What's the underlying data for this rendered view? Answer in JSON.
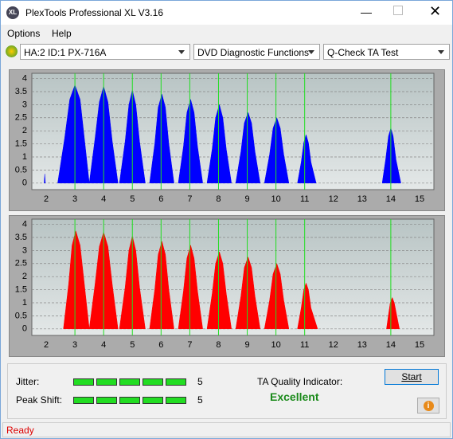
{
  "window": {
    "title": "PlexTools Professional XL V3.16"
  },
  "menu": [
    "Options",
    "Help"
  ],
  "toolbar": {
    "drive": "HA:2 ID:1  PX-716A",
    "function": "DVD Diagnostic Functions",
    "test": "Q-Check TA Test"
  },
  "chart_data": [
    {
      "type": "area",
      "x": [
        1.93,
        1.95,
        1.97,
        null,
        2.4,
        2.64,
        2.82,
        3.0,
        3.18,
        3.33,
        3.5,
        null,
        3.5,
        3.7,
        3.85,
        4.0,
        4.15,
        4.3,
        4.5,
        null,
        4.55,
        4.75,
        4.88,
        5.0,
        5.12,
        5.25,
        5.45,
        null,
        5.6,
        5.78,
        5.9,
        6.03,
        6.15,
        6.27,
        6.45,
        null,
        6.6,
        6.78,
        6.9,
        7.03,
        7.15,
        7.27,
        7.45,
        null,
        7.6,
        7.78,
        7.9,
        8.03,
        8.15,
        8.27,
        8.45,
        null,
        8.6,
        8.78,
        8.9,
        9.03,
        9.15,
        9.27,
        9.45,
        null,
        9.6,
        9.78,
        9.9,
        10.03,
        10.15,
        10.27,
        10.45,
        null,
        10.75,
        10.88,
        10.97,
        11.05,
        11.13,
        11.22,
        11.4,
        null,
        13.7,
        13.82,
        13.92,
        14.0,
        14.08,
        14.18,
        14.35
      ],
      "series": [
        {
          "color": "#0000ff",
          "values": [
            0,
            0.35,
            0,
            null,
            0,
            1.7,
            3.2,
            3.75,
            3.2,
            1.7,
            0,
            null,
            0,
            1.7,
            3.1,
            3.7,
            3.1,
            1.6,
            0,
            null,
            0,
            1.6,
            3.0,
            3.55,
            3.0,
            1.6,
            0,
            null,
            0,
            1.5,
            2.9,
            3.4,
            2.9,
            1.5,
            0,
            null,
            0,
            1.4,
            2.7,
            3.2,
            2.7,
            1.4,
            0,
            null,
            0,
            1.3,
            2.5,
            3.0,
            2.5,
            1.3,
            0,
            null,
            0,
            1.2,
            2.3,
            2.7,
            2.3,
            1.2,
            0,
            null,
            0,
            1.1,
            2.1,
            2.5,
            2.1,
            1.1,
            0,
            null,
            0,
            0.8,
            1.55,
            1.85,
            1.55,
            0.8,
            0,
            null,
            0,
            0.9,
            1.8,
            2.1,
            1.8,
            0.9,
            0
          ]
        }
      ],
      "xlim": [
        1.5,
        15.5
      ],
      "ylim": [
        -0.25,
        4.2
      ],
      "xticks": [
        2,
        3,
        4,
        5,
        6,
        7,
        8,
        9,
        10,
        11,
        12,
        13,
        14,
        15
      ],
      "yticks": [
        0,
        0.5,
        1,
        1.5,
        2,
        2.5,
        3,
        3.5,
        4
      ],
      "grid": true,
      "marker_lines": [
        3,
        4,
        5,
        6,
        7,
        8,
        9,
        10,
        11,
        14
      ],
      "marker_color": "#22dd22"
    },
    {
      "type": "area",
      "x": [
        2.6,
        2.78,
        2.9,
        3.03,
        3.18,
        3.33,
        3.5,
        null,
        3.5,
        3.7,
        3.85,
        4.0,
        4.15,
        4.3,
        4.5,
        null,
        4.55,
        4.75,
        4.88,
        5.0,
        5.12,
        5.25,
        5.45,
        null,
        5.6,
        5.78,
        5.9,
        6.03,
        6.15,
        6.27,
        6.45,
        null,
        6.6,
        6.78,
        6.9,
        7.03,
        7.15,
        7.27,
        7.45,
        null,
        7.6,
        7.78,
        7.9,
        8.03,
        8.15,
        8.27,
        8.45,
        null,
        8.6,
        8.78,
        8.9,
        9.03,
        9.15,
        9.27,
        9.45,
        null,
        9.6,
        9.78,
        9.9,
        10.03,
        10.15,
        10.27,
        10.45,
        null,
        10.75,
        10.88,
        10.97,
        11.05,
        11.13,
        11.22,
        11.45,
        null,
        13.85,
        13.92,
        13.98,
        14.05,
        14.12,
        14.2,
        14.3
      ],
      "series": [
        {
          "color": "#ff0000",
          "values": [
            0,
            1.7,
            3.2,
            3.75,
            3.2,
            1.7,
            0,
            null,
            0,
            1.7,
            3.15,
            3.7,
            3.15,
            1.7,
            0,
            null,
            0,
            1.6,
            3.0,
            3.55,
            3.0,
            1.6,
            0,
            null,
            0,
            1.5,
            2.85,
            3.35,
            2.85,
            1.5,
            0,
            null,
            0,
            1.45,
            2.7,
            3.2,
            2.7,
            1.45,
            0,
            null,
            0,
            1.35,
            2.5,
            2.95,
            2.5,
            1.35,
            0,
            null,
            0,
            1.25,
            2.35,
            2.75,
            2.35,
            1.25,
            0,
            null,
            0,
            1.1,
            2.1,
            2.5,
            2.1,
            1.1,
            0,
            null,
            0,
            0.8,
            1.5,
            1.75,
            1.5,
            0.8,
            0,
            null,
            0,
            0.55,
            1.0,
            1.2,
            1.0,
            0.55,
            0
          ]
        }
      ],
      "xlim": [
        1.5,
        15.5
      ],
      "ylim": [
        -0.25,
        4.2
      ],
      "xticks": [
        2,
        3,
        4,
        5,
        6,
        7,
        8,
        9,
        10,
        11,
        12,
        13,
        14,
        15
      ],
      "yticks": [
        0,
        0.5,
        1,
        1.5,
        2,
        2.5,
        3,
        3.5,
        4
      ],
      "grid": true,
      "marker_lines": [
        3,
        4,
        5,
        6,
        7,
        8,
        9,
        10,
        11,
        14
      ],
      "marker_color": "#22dd22"
    }
  ],
  "results": {
    "jitter": {
      "label": "Jitter:",
      "value": 5
    },
    "peak_shift": {
      "label": "Peak Shift:",
      "value": 5
    },
    "quality": {
      "label": "TA Quality Indicator:",
      "value": "Excellent"
    }
  },
  "buttons": {
    "start": "Start"
  },
  "status": "Ready"
}
